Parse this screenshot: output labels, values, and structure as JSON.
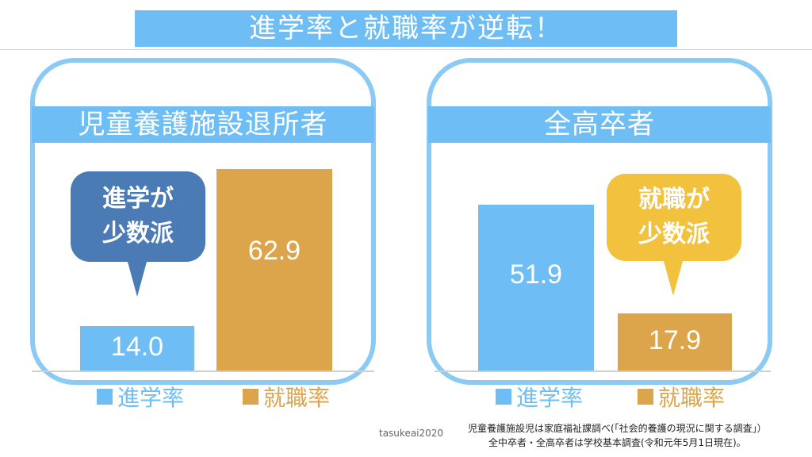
{
  "title": "進学率と就職率が逆転！",
  "colors": {
    "blue": "#6ebef5",
    "orange": "#dca54c",
    "bubble_blue": "#4a7bb5",
    "bubble_yellow": "#f2c13e",
    "border": "#8ccaf6"
  },
  "chart_data": [
    {
      "type": "bar",
      "title": "児童養護施設退所者",
      "categories": [
        "進学率",
        "就職率"
      ],
      "values": [
        14.0,
        62.9
      ],
      "value_labels": [
        "14.0",
        "62.9"
      ],
      "colors": [
        "#6ebef5",
        "#dca54c"
      ],
      "ylim": [
        0,
        70
      ],
      "callout": "進学が\n少数派",
      "legend": [
        "進学率",
        "就職率"
      ]
    },
    {
      "type": "bar",
      "title": "全高卒者",
      "categories": [
        "進学率",
        "就職率"
      ],
      "values": [
        51.9,
        17.9
      ],
      "value_labels": [
        "51.9",
        "17.9"
      ],
      "colors": [
        "#6ebef5",
        "#dca54c"
      ],
      "ylim": [
        0,
        70
      ],
      "callout": "就職が\n少数派",
      "legend": [
        "進学率",
        "就職率"
      ]
    }
  ],
  "watermark": "tasukeai2020",
  "source_lines": [
    "児童養護施設児は家庭福祉課調べ(「社会的養護の現況に関する調査」）",
    "全中卒者・全高卒者は学校基本調査(令和元年5月1日現在)。"
  ]
}
